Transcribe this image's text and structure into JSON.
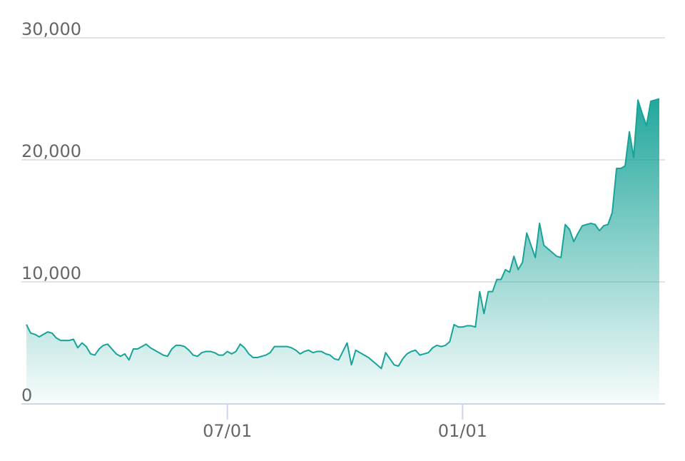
{
  "chart_data": {
    "type": "area",
    "categories": [
      null,
      null,
      null,
      null,
      null,
      null,
      null,
      null,
      null,
      null,
      null,
      null,
      null,
      null,
      null,
      null,
      null,
      null,
      null,
      null,
      null,
      null,
      null,
      null,
      null,
      null,
      null,
      null,
      null,
      null,
      null,
      null,
      null,
      null,
      null,
      null,
      null,
      null,
      null,
      null,
      null,
      null,
      null,
      null,
      null,
      null,
      null,
      "07/01",
      null,
      null,
      null,
      null,
      null,
      null,
      null,
      null,
      null,
      null,
      null,
      null,
      null,
      null,
      null,
      null,
      null,
      null,
      null,
      null,
      null,
      null,
      null,
      null,
      null,
      null,
      null,
      null,
      null,
      null,
      null,
      null,
      null,
      null,
      null,
      null,
      null,
      null,
      null,
      null,
      null,
      null,
      null,
      null,
      null,
      null,
      null,
      null,
      null,
      null,
      null,
      null,
      null,
      null,
      "01/01",
      null,
      null,
      null,
      null,
      null,
      null,
      null,
      null,
      null,
      null,
      null,
      null,
      null,
      null,
      null,
      null,
      null,
      null,
      null,
      null,
      null,
      null,
      null,
      null,
      null,
      null,
      null,
      null,
      null,
      null,
      null,
      null,
      null,
      null,
      null,
      null,
      null,
      null,
      null,
      null,
      null,
      null,
      null,
      null,
      null,
      null
    ],
    "values": [
      6500,
      5800,
      5700,
      5500,
      5700,
      5900,
      5800,
      5400,
      5200,
      5200,
      5200,
      5300,
      4600,
      5000,
      4700,
      4100,
      4000,
      4500,
      4800,
      4900,
      4500,
      4100,
      3900,
      4100,
      3600,
      4500,
      4500,
      4700,
      4900,
      4600,
      4400,
      4200,
      4000,
      3900,
      4500,
      4800,
      4800,
      4700,
      4400,
      4000,
      3900,
      4200,
      4300,
      4300,
      4200,
      4000,
      4000,
      4300,
      4100,
      4300,
      4900,
      4600,
      4100,
      3800,
      3800,
      3900,
      4000,
      4200,
      4700,
      4700,
      4700,
      4700,
      4600,
      4400,
      4100,
      4300,
      4400,
      4200,
      4300,
      4300,
      4100,
      4000,
      3700,
      3600,
      4300,
      5000,
      3200,
      4400,
      4200,
      4000,
      3800,
      3500,
      3200,
      2900,
      4200,
      3700,
      3200,
      3100,
      3700,
      4100,
      4300,
      4400,
      4000,
      4100,
      4200,
      4600,
      4800,
      4700,
      4800,
      5100,
      6500,
      6300,
      6300,
      6400,
      6400,
      6300,
      9200,
      7400,
      9200,
      9200,
      10200,
      10200,
      11000,
      10800,
      12100,
      11000,
      11600,
      14000,
      13000,
      12000,
      14800,
      13000,
      12700,
      12400,
      12100,
      12000,
      14700,
      14300,
      13300,
      14000,
      14600,
      14700,
      14800,
      14700,
      14200,
      14600,
      14700,
      15700,
      19300,
      19300,
      19500,
      22300,
      20200,
      24900,
      23800,
      22800,
      24800,
      24900,
      25000
    ],
    "color": "#17a398",
    "ylim": [
      0,
      30000
    ],
    "yticks": [
      0,
      {
        "value": 10000,
        "label": "10,000"
      },
      {
        "value": 20000,
        "label": "20,000"
      },
      {
        "value": 30000,
        "label": "30,000"
      }
    ],
    "grid": true
  }
}
